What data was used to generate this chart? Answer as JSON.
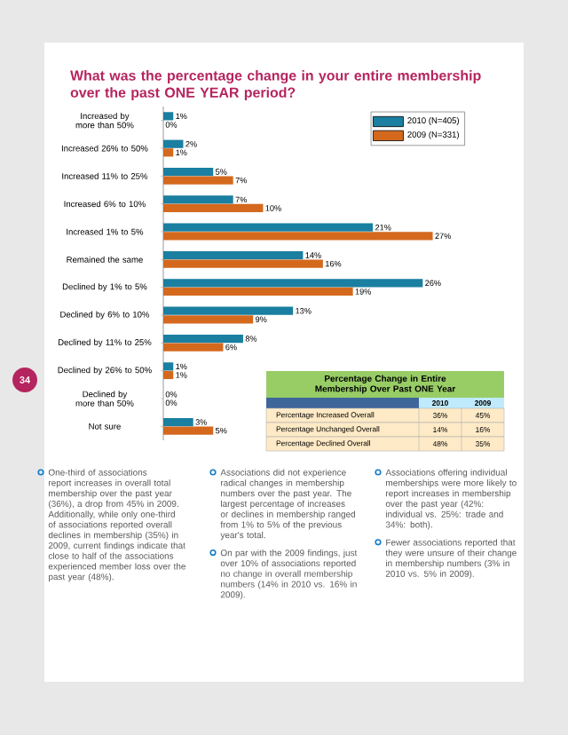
{
  "chart_data": {
    "type": "bar",
    "orientation": "horizontal",
    "title": "What was the percentage change in your entire membership over the past ONE YEAR period?",
    "categories": [
      "Increased by more than 50%",
      "Increased 26% to 50%",
      "Increased 11% to 25%",
      "Increased 6% to 10%",
      "Increased 1% to 5%",
      "Remained the same",
      "Declined by 1% to 5%",
      "Declined by 6% to 10%",
      "Declined by 11% to 25%",
      "Declined by 26% to 50%",
      "Declined by more than 50%",
      "Not sure"
    ],
    "series": [
      {
        "name": "2010 (N=405)",
        "color": "#1a7fa0",
        "values": [
          1,
          2,
          5,
          7,
          21,
          14,
          26,
          13,
          8,
          1,
          0,
          3
        ],
        "value_labels": [
          "1%",
          "2%",
          "5%",
          "7%",
          "21%",
          "14%",
          "26%",
          "13%",
          "8%",
          "1%",
          "0%",
          "3%"
        ]
      },
      {
        "name": "2009 (N=331)",
        "color": "#d4691e",
        "values": [
          0,
          1,
          7,
          10,
          27,
          16,
          19,
          9,
          6,
          1,
          0,
          5
        ],
        "value_labels": [
          "0%",
          "1%",
          "7%",
          "10%",
          "27%",
          "16%",
          "19%",
          "9%",
          "6%",
          "1%",
          "0%",
          "5%"
        ]
      }
    ],
    "legend": "top right",
    "annotations": [
      "34",
      "Percentage Change in Entire Membership Over Past ONE Year",
      "2010",
      "2009",
      "Percentage Increased Overall",
      "36%",
      "45%",
      "Percentage Unchanged Overall",
      "14%",
      "16%",
      "Percentage Declined Overall",
      "48%",
      "35%",
      "One-third of associations report increases in overall total membership over the past year (36%), a drop from 45% in 2009. Additionally, while only one-third of associations reported overall declines in membership (35%) in 2009, current findings indicate that close to half of the associations experienced member loss over the past year (48%).",
      "Associations did not experience radical changes in membership numbers over the past year. The largest percentage of increases or declines in membership ranged from 1% to 5% of the previous year's total.",
      "On par with the 2009 findings, just over 10% of associations reported no change in overall membership numbers (14% in 2010 vs. 16% in 2009).",
      "Associations offering individual memberships were more likely to report increases in membership over the past year (42%: individual vs. 25%: trade and 34%: both).",
      "Fewer associations reported that they were unsure of their change in membership numbers (3% in 2010 vs. 5% in 2009)."
    ]
  }
}
